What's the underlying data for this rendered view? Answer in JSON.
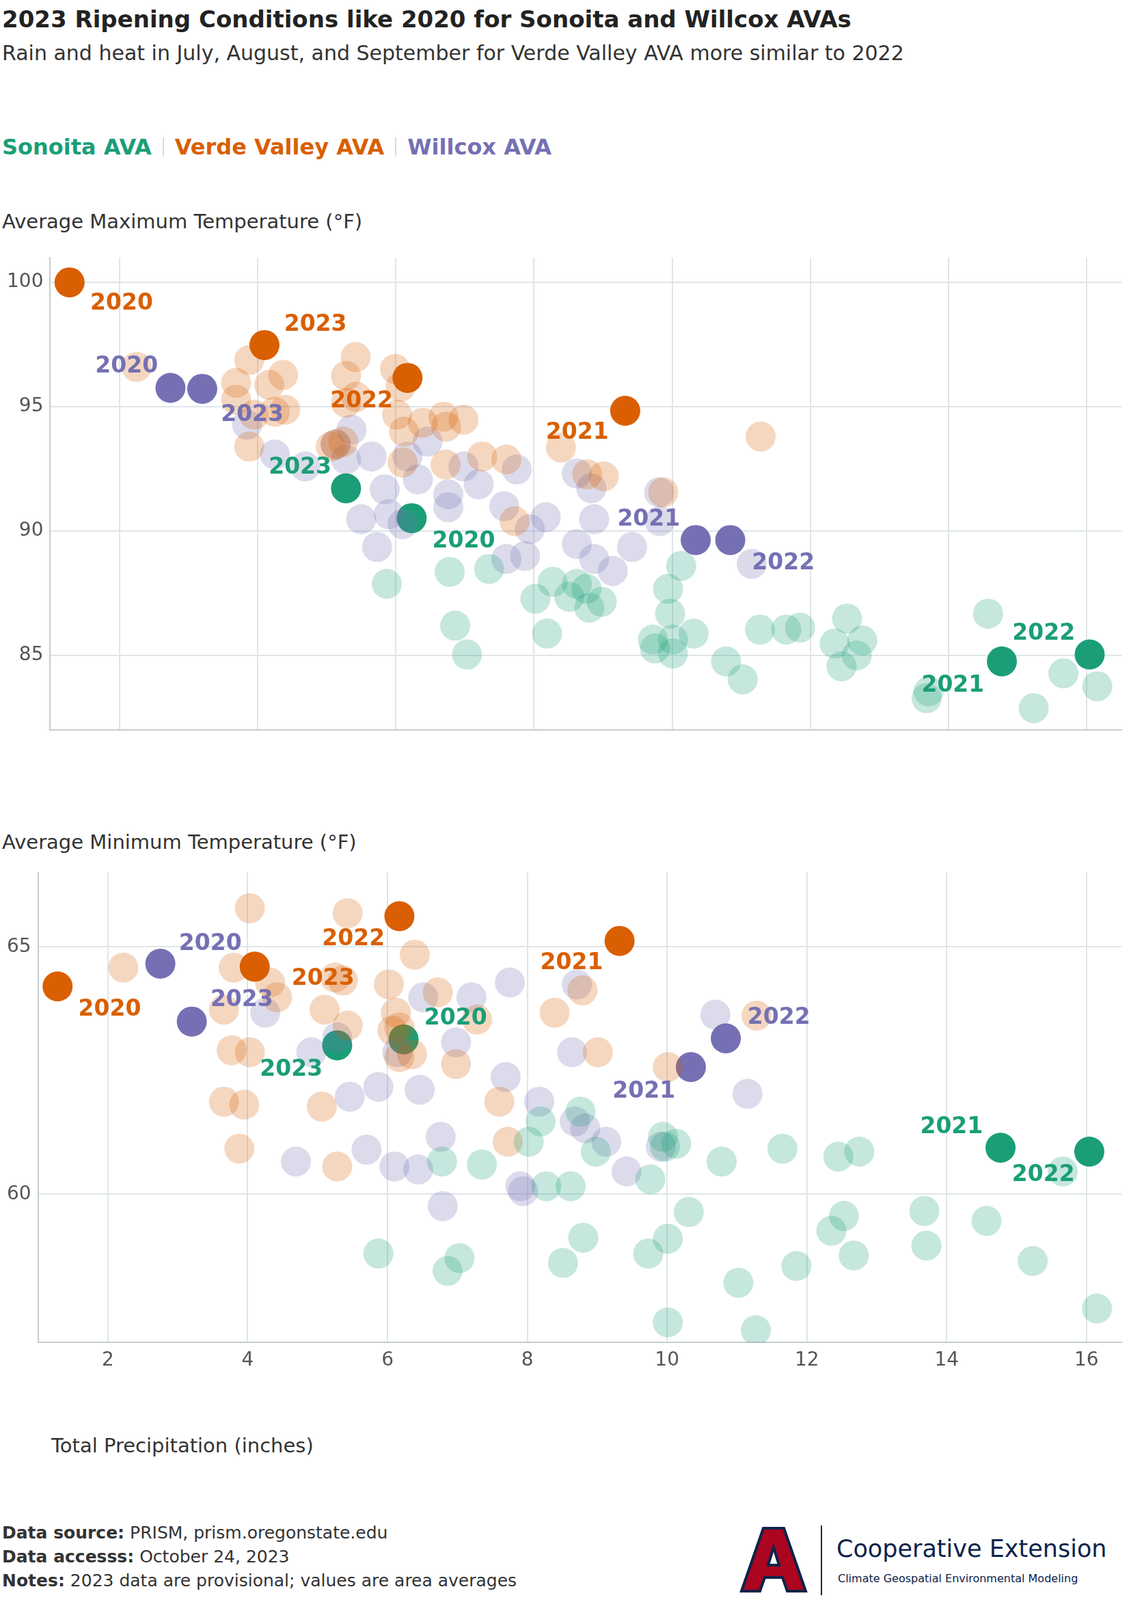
{
  "title": "2023 Ripening Conditions like 2020 for Sonoita and Willcox AVAs",
  "subtitle": "Rain and heat in July, August, and September for Verde Valley AVA more similar to 2022",
  "chart_data": [
    {
      "type": "scatter",
      "y_label": "Average Maximum Temperature (°F)",
      "xlim": [
        1,
        16.5
      ],
      "xticks": [
        2,
        4,
        6,
        8,
        10,
        12,
        14,
        16
      ],
      "ylim": [
        82,
        101
      ],
      "yticks": [
        85,
        90,
        95,
        100
      ],
      "grid": true,
      "legend": "top",
      "tick_labels": "y",
      "series": [
        {
          "name": "Sonoita AVA",
          "color": "#1b9e77",
          "x": [
            5.87,
            6.86,
            7.03,
            6.78,
            7.35,
            8.02,
            8.19,
            8.27,
            8.51,
            8.62,
            8.8,
            8.98,
            9.72,
            9.75,
            9.94,
            9.97,
            10.01,
            10.01,
            10.13,
            10.31,
            10.78,
            11.02,
            11.27,
            11.65,
            11.85,
            12.35,
            12.53,
            12.45,
            12.67,
            12.75,
            13.68,
            13.71,
            14.57,
            15.23,
            15.66,
            16.15,
            8.76,
            6.23,
            14.77,
            16.04,
            5.28
          ],
          "values": [
            87.88,
            86.2,
            85.04,
            88.36,
            88.48,
            87.28,
            85.88,
            87.96,
            87.36,
            87.88,
            86.92,
            87.16,
            85.64,
            85.28,
            87.68,
            86.68,
            85.64,
            85.08,
            88.6,
            85.88,
            84.76,
            84.04,
            86.04,
            86.04,
            86.12,
            85.48,
            86.48,
            84.56,
            85.0,
            85.6,
            83.28,
            83.56,
            86.68,
            82.88,
            84.28,
            83.76,
            87.68,
            90.52,
            84.76,
            85.04,
            91.72
          ],
          "point_labels": [
            null,
            null,
            null,
            null,
            null,
            null,
            null,
            null,
            null,
            null,
            null,
            null,
            null,
            null,
            null,
            null,
            null,
            null,
            null,
            null,
            null,
            null,
            null,
            null,
            null,
            null,
            null,
            null,
            null,
            null,
            null,
            null,
            null,
            null,
            null,
            null,
            null,
            "2020",
            "2021",
            "2022",
            "2023"
          ]
        },
        {
          "name": "Verde Valley AVA",
          "color": "#d95f02",
          "x": [
            2.25,
            3.88,
            3.69,
            4.17,
            4.37,
            3.88,
            4.25,
            3.95,
            3.69,
            4.4,
            5.42,
            5.28,
            5.13,
            5.24,
            5.06,
            5.28,
            5.43,
            5.99,
            6.07,
            6.02,
            6.12,
            6.1,
            6.39,
            6.69,
            6.98,
            6.73,
            6.72,
            7.25,
            7.6,
            7.72,
            8.39,
            8.77,
            9.01,
            9.87,
            11.28,
            1.28,
            9.32,
            6.17,
            4.1
          ],
          "values": [
            96.6,
            96.88,
            95.96,
            95.88,
            96.28,
            93.4,
            94.8,
            94.68,
            95.28,
            94.88,
            97.0,
            96.24,
            93.48,
            93.6,
            93.4,
            95.16,
            95.4,
            96.52,
            95.8,
            94.68,
            94.0,
            92.76,
            94.36,
            94.6,
            94.48,
            94.2,
            92.68,
            93.0,
            92.88,
            90.4,
            93.36,
            92.28,
            92.2,
            91.56,
            93.8,
            100.0,
            94.84,
            96.16,
            97.48
          ],
          "point_labels": [
            null,
            null,
            null,
            null,
            null,
            null,
            null,
            null,
            null,
            null,
            null,
            null,
            null,
            null,
            null,
            null,
            null,
            null,
            null,
            null,
            null,
            null,
            null,
            null,
            null,
            null,
            null,
            null,
            null,
            null,
            null,
            null,
            null,
            null,
            null,
            "2020",
            "2021",
            "2022",
            "2023"
          ]
        },
        {
          "name": "Willcox AVA",
          "color": "#7570b3",
          "x": [
            3.85,
            4.25,
            4.69,
            5.13,
            5.36,
            5.28,
            5.65,
            5.5,
            5.73,
            5.84,
            5.9,
            6.1,
            6.17,
            6.32,
            6.46,
            6.76,
            6.76,
            6.98,
            7.2,
            7.57,
            7.75,
            7.94,
            8.17,
            8.62,
            8.83,
            8.62,
            8.87,
            8.87,
            9.14,
            9.42,
            9.81,
            9.82,
            11.15,
            7.6,
            7.87,
            2.74,
            10.34,
            10.84,
            3.2
          ],
          "values": [
            94.28,
            93.08,
            92.6,
            93.5,
            94.08,
            92.88,
            93.0,
            90.48,
            89.36,
            91.68,
            90.68,
            90.28,
            93.0,
            92.08,
            93.6,
            91.48,
            90.96,
            92.6,
            91.88,
            91.0,
            92.48,
            90.08,
            90.56,
            92.32,
            91.72,
            89.48,
            90.48,
            88.88,
            88.4,
            89.36,
            91.56,
            90.4,
            88.68,
            88.88,
            89.0,
            95.76,
            89.64,
            89.64,
            95.72
          ],
          "point_labels": [
            null,
            null,
            null,
            null,
            null,
            null,
            null,
            null,
            null,
            null,
            null,
            null,
            null,
            null,
            null,
            null,
            null,
            null,
            null,
            null,
            null,
            null,
            null,
            null,
            null,
            null,
            null,
            null,
            null,
            null,
            null,
            null,
            null,
            null,
            null,
            "2020",
            "2021",
            "2022",
            "2023"
          ]
        }
      ]
    },
    {
      "type": "scatter",
      "y_label": "Average Minimum Temperature (°F)",
      "x_label": "Total Precipitation (inches)",
      "xlim": [
        1,
        16.5
      ],
      "xticks": [
        2,
        4,
        6,
        8,
        10,
        12,
        14,
        16
      ],
      "ylim": [
        57,
        66.5
      ],
      "yticks": [
        60,
        65
      ],
      "grid": true,
      "tick_labels": true,
      "series": [
        {
          "name": "Sonoita AVA",
          "color": "#1b9e77",
          "x": [
            5.87,
            6.86,
            7.03,
            6.78,
            7.35,
            8.02,
            8.19,
            8.27,
            8.51,
            8.62,
            8.8,
            8.98,
            9.73,
            9.76,
            9.94,
            9.97,
            10.01,
            10.01,
            10.13,
            10.31,
            10.78,
            11.02,
            11.27,
            11.65,
            11.85,
            12.35,
            12.53,
            12.45,
            12.67,
            12.75,
            13.68,
            13.71,
            14.57,
            15.23,
            15.66,
            16.15,
            8.76,
            6.23,
            14.77,
            16.04,
            5.28
          ],
          "values": [
            58.8,
            58.45,
            58.71,
            60.66,
            60.6,
            61.06,
            61.47,
            60.16,
            58.61,
            60.16,
            59.12,
            60.86,
            58.8,
            60.3,
            61.16,
            60.96,
            59.1,
            57.41,
            61.02,
            59.64,
            60.66,
            58.21,
            57.25,
            60.92,
            58.55,
            59.26,
            59.56,
            60.76,
            58.76,
            60.86,
            59.66,
            58.96,
            59.46,
            58.65,
            60.46,
            57.69,
            61.67,
            63.13,
            60.94,
            60.86,
            63.01
          ],
          "point_labels": [
            null,
            null,
            null,
            null,
            null,
            null,
            null,
            null,
            null,
            null,
            null,
            null,
            null,
            null,
            null,
            null,
            null,
            null,
            null,
            null,
            null,
            null,
            null,
            null,
            null,
            null,
            null,
            null,
            null,
            null,
            null,
            null,
            null,
            null,
            null,
            null,
            null,
            "2020",
            "2021",
            "2022",
            "2023"
          ]
        },
        {
          "name": "Verde Valley AVA",
          "color": "#d95f02",
          "x": [
            2.22,
            4.03,
            3.8,
            4.32,
            4.42,
            3.66,
            3.77,
            4.03,
            3.66,
            3.95,
            3.88,
            5.43,
            5.25,
            5.36,
            5.1,
            5.43,
            5.06,
            5.28,
            6.02,
            6.07,
            6.12,
            6.17,
            6.39,
            6.35,
            6.72,
            6.98,
            7.28,
            7.6,
            7.72,
            8.39,
            8.79,
            9.01,
            10.01,
            11.28,
            6.17,
            1.28,
            9.32,
            6.17,
            4.1
          ],
          "values": [
            64.58,
            65.78,
            64.58,
            64.28,
            63.98,
            63.73,
            62.91,
            62.87,
            61.87,
            61.81,
            60.92,
            65.68,
            64.38,
            64.32,
            63.73,
            63.41,
            61.77,
            60.56,
            64.24,
            63.31,
            63.67,
            62.77,
            64.84,
            62.83,
            64.08,
            62.63,
            63.53,
            61.87,
            61.06,
            63.67,
            64.12,
            62.87,
            62.57,
            63.61,
            63.37,
            64.2,
            65.12,
            65.62,
            64.6
          ],
          "point_labels": [
            null,
            null,
            null,
            null,
            null,
            null,
            null,
            null,
            null,
            null,
            null,
            null,
            null,
            null,
            null,
            null,
            null,
            null,
            null,
            null,
            null,
            null,
            null,
            null,
            null,
            null,
            null,
            null,
            null,
            null,
            null,
            null,
            null,
            null,
            null,
            "2020",
            "2021",
            "2022",
            "2023"
          ]
        },
        {
          "name": "Willcox AVA",
          "color": "#7570b3",
          "x": [
            4.25,
            4.69,
            4.91,
            5.28,
            5.46,
            5.7,
            5.87,
            6.1,
            6.14,
            6.44,
            6.46,
            6.51,
            6.76,
            6.79,
            6.98,
            7.2,
            7.69,
            7.75,
            7.94,
            8.17,
            8.64,
            8.71,
            8.68,
            8.83,
            9.13,
            9.42,
            9.91,
            10.69,
            11.15,
            7.9,
            2.75,
            10.34,
            10.84,
            3.2
          ],
          "values": [
            63.67,
            60.66,
            62.87,
            63.17,
            61.97,
            60.9,
            62.17,
            60.56,
            62.87,
            60.5,
            62.11,
            63.98,
            61.16,
            59.76,
            63.07,
            63.98,
            62.37,
            64.28,
            60.06,
            61.87,
            62.87,
            64.24,
            61.47,
            61.33,
            61.06,
            60.46,
            60.96,
            63.63,
            62.03,
            60.16,
            64.66,
            62.57,
            63.15,
            63.49
          ],
          "point_labels": [
            null,
            null,
            null,
            null,
            null,
            null,
            null,
            null,
            null,
            null,
            null,
            null,
            null,
            null,
            null,
            null,
            null,
            null,
            null,
            null,
            null,
            null,
            null,
            null,
            null,
            null,
            null,
            null,
            null,
            null,
            "2020",
            "2021",
            "2022",
            "2023"
          ]
        }
      ]
    }
  ],
  "footer": [
    {
      "label": "Data source:",
      "text": "PRISM, prism.oregonstate.edu"
    },
    {
      "label": "Data accesss:",
      "text": "October 24, 2023"
    },
    {
      "label": "Notes:",
      "text": "2023 data are provisional; values are area averages"
    }
  ],
  "logo": {
    "name": "Cooperative Extension",
    "unit": "Climate Geospatial Environmental Modeling"
  }
}
